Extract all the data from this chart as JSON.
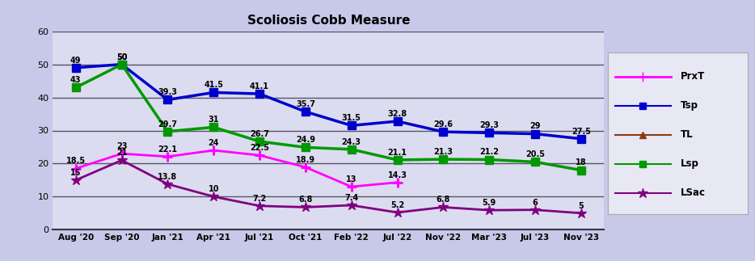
{
  "title": "Scoliosis Cobb Measure",
  "x_labels": [
    "Aug '20",
    "Sep '20",
    "Jan '21",
    "Apr '21",
    "Jul '21",
    "Oct '21",
    "Feb '22",
    "Jul '22",
    "Nov '22",
    "Mar '23",
    "Jul '23",
    "Nov '23"
  ],
  "PrxT": [
    18.5,
    23,
    22.1,
    24,
    22.5,
    18.9,
    13,
    14.3,
    null,
    null,
    null,
    null
  ],
  "Tsp": [
    49,
    50,
    39.3,
    41.5,
    41.1,
    35.7,
    31.5,
    32.8,
    29.6,
    29.3,
    29,
    27.5
  ],
  "TL": [
    null,
    null,
    null,
    null,
    null,
    null,
    null,
    null,
    null,
    null,
    null,
    null
  ],
  "Lsp": [
    43,
    50,
    29.7,
    31,
    26.7,
    24.9,
    24.3,
    21.1,
    21.3,
    21.2,
    20.5,
    18
  ],
  "LSac": [
    15,
    21,
    13.8,
    10,
    7.2,
    6.8,
    7.4,
    5.2,
    6.8,
    5.9,
    6,
    5
  ],
  "PrxT_color": "#FF00FF",
  "Tsp_color": "#0000CD",
  "TL_color": "#8B3A0F",
  "Lsp_color": "#009900",
  "LSac_color": "#800080",
  "ylim": [
    0,
    60
  ],
  "yticks": [
    0,
    10,
    20,
    30,
    40,
    50,
    60
  ],
  "fig_facecolor": "#ffffff",
  "outer_bg": "#C8C8E8",
  "plot_bg": "#DCDCF0",
  "title_fontsize": 11,
  "annotation_fontsize": 7
}
